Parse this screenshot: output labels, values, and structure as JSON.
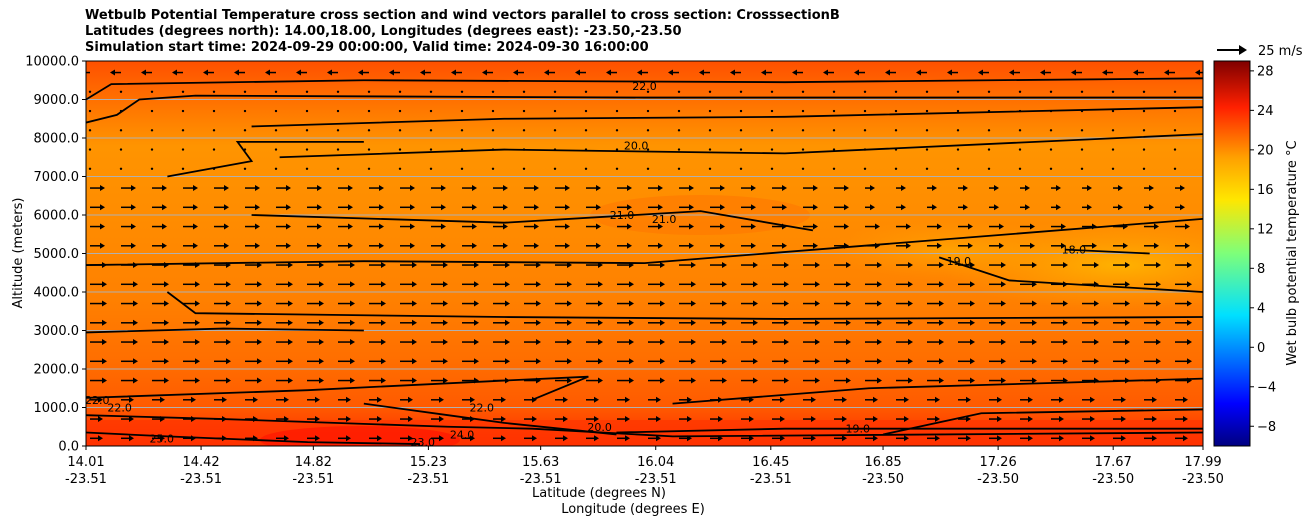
{
  "title_lines": [
    "Wetbulb Potential Temperature cross section and wind vectors parallel to cross section: CrosssectionB",
    "Latitudes (degrees north): 14.00,18.00, Longitudes (degrees east): -23.50,-23.50",
    "Simulation start time: 2024-09-29 00:00:00, Valid time: 2024-09-30 16:00:00"
  ],
  "chart_data": {
    "type": "heatmap",
    "ylabel": "Altitude (meters)",
    "xlabel": "Latitude (degrees N)",
    "xlabel2": "Longitude (degrees E)",
    "ylim": [
      0,
      10000
    ],
    "yticks": [
      "0.0",
      "1000.0",
      "2000.0",
      "3000.0",
      "4000.0",
      "5000.0",
      "6000.0",
      "7000.0",
      "8000.0",
      "9000.0",
      "10000.0"
    ],
    "ytick_values": [
      0,
      1000,
      2000,
      3000,
      4000,
      5000,
      6000,
      7000,
      8000,
      9000,
      10000
    ],
    "xlim": [
      14.01,
      17.99
    ],
    "xtick_values": [
      14.01,
      14.42,
      14.82,
      15.23,
      15.63,
      16.04,
      16.45,
      16.85,
      17.26,
      17.67,
      17.99
    ],
    "xtick_lat": [
      "14.01",
      "14.42",
      "14.82",
      "15.23",
      "15.63",
      "16.04",
      "16.45",
      "16.85",
      "17.26",
      "17.67",
      "17.99"
    ],
    "xtick_lon": [
      "-23.51",
      "-23.51",
      "-23.51",
      "-23.51",
      "-23.51",
      "-23.51",
      "-23.51",
      "-23.50",
      "-23.50",
      "-23.50",
      "-23.50"
    ],
    "grid": "horizontal",
    "colorbar": {
      "label": "Wet bulb potential temperature $^\\circ$C",
      "range": [
        -10,
        29
      ],
      "ticks": [
        -8,
        -4,
        0,
        4,
        8,
        12,
        16,
        20,
        24,
        28
      ],
      "tick_labels": [
        "−8",
        "−4",
        "0",
        "4",
        "8",
        "12",
        "16",
        "20",
        "24",
        "28"
      ],
      "colormap": "jet"
    },
    "quiver_key": "25 m/s",
    "contour_levels": [
      {
        "label": "22.0",
        "values": [
          [
            14.01,
            9000
          ],
          [
            14.1,
            9400
          ],
          [
            15.0,
            9500
          ],
          [
            16.5,
            9450
          ],
          [
            17.99,
            9550
          ]
        ]
      },
      {
        "label": "20.0",
        "values": [
          [
            14.7,
            7500
          ],
          [
            15.5,
            7700
          ],
          [
            16.5,
            7600
          ],
          [
            17.99,
            8100
          ]
        ]
      },
      {
        "label": "21.0",
        "values": [
          [
            14.6,
            6000
          ],
          [
            15.5,
            5800
          ],
          [
            16.2,
            6100
          ],
          [
            16.6,
            5600
          ]
        ]
      },
      {
        "label": "19.0",
        "values": [
          [
            17.05,
            4900
          ],
          [
            17.3,
            4300
          ],
          [
            17.99,
            4000
          ]
        ]
      },
      {
        "label": "18.0",
        "values": [
          [
            17.5,
            5100
          ],
          [
            17.8,
            5000
          ]
        ]
      }
    ],
    "annotations": [
      "22.0",
      "20.0",
      "21.0",
      "21.0",
      "19.0",
      "18.0",
      "22.0",
      "22.0",
      "25.0",
      "23.0",
      "24.0",
      "20.0",
      "19.0",
      "22.0"
    ],
    "wind": "westward near 9500–10000 m; eastward below about 7000 m"
  }
}
